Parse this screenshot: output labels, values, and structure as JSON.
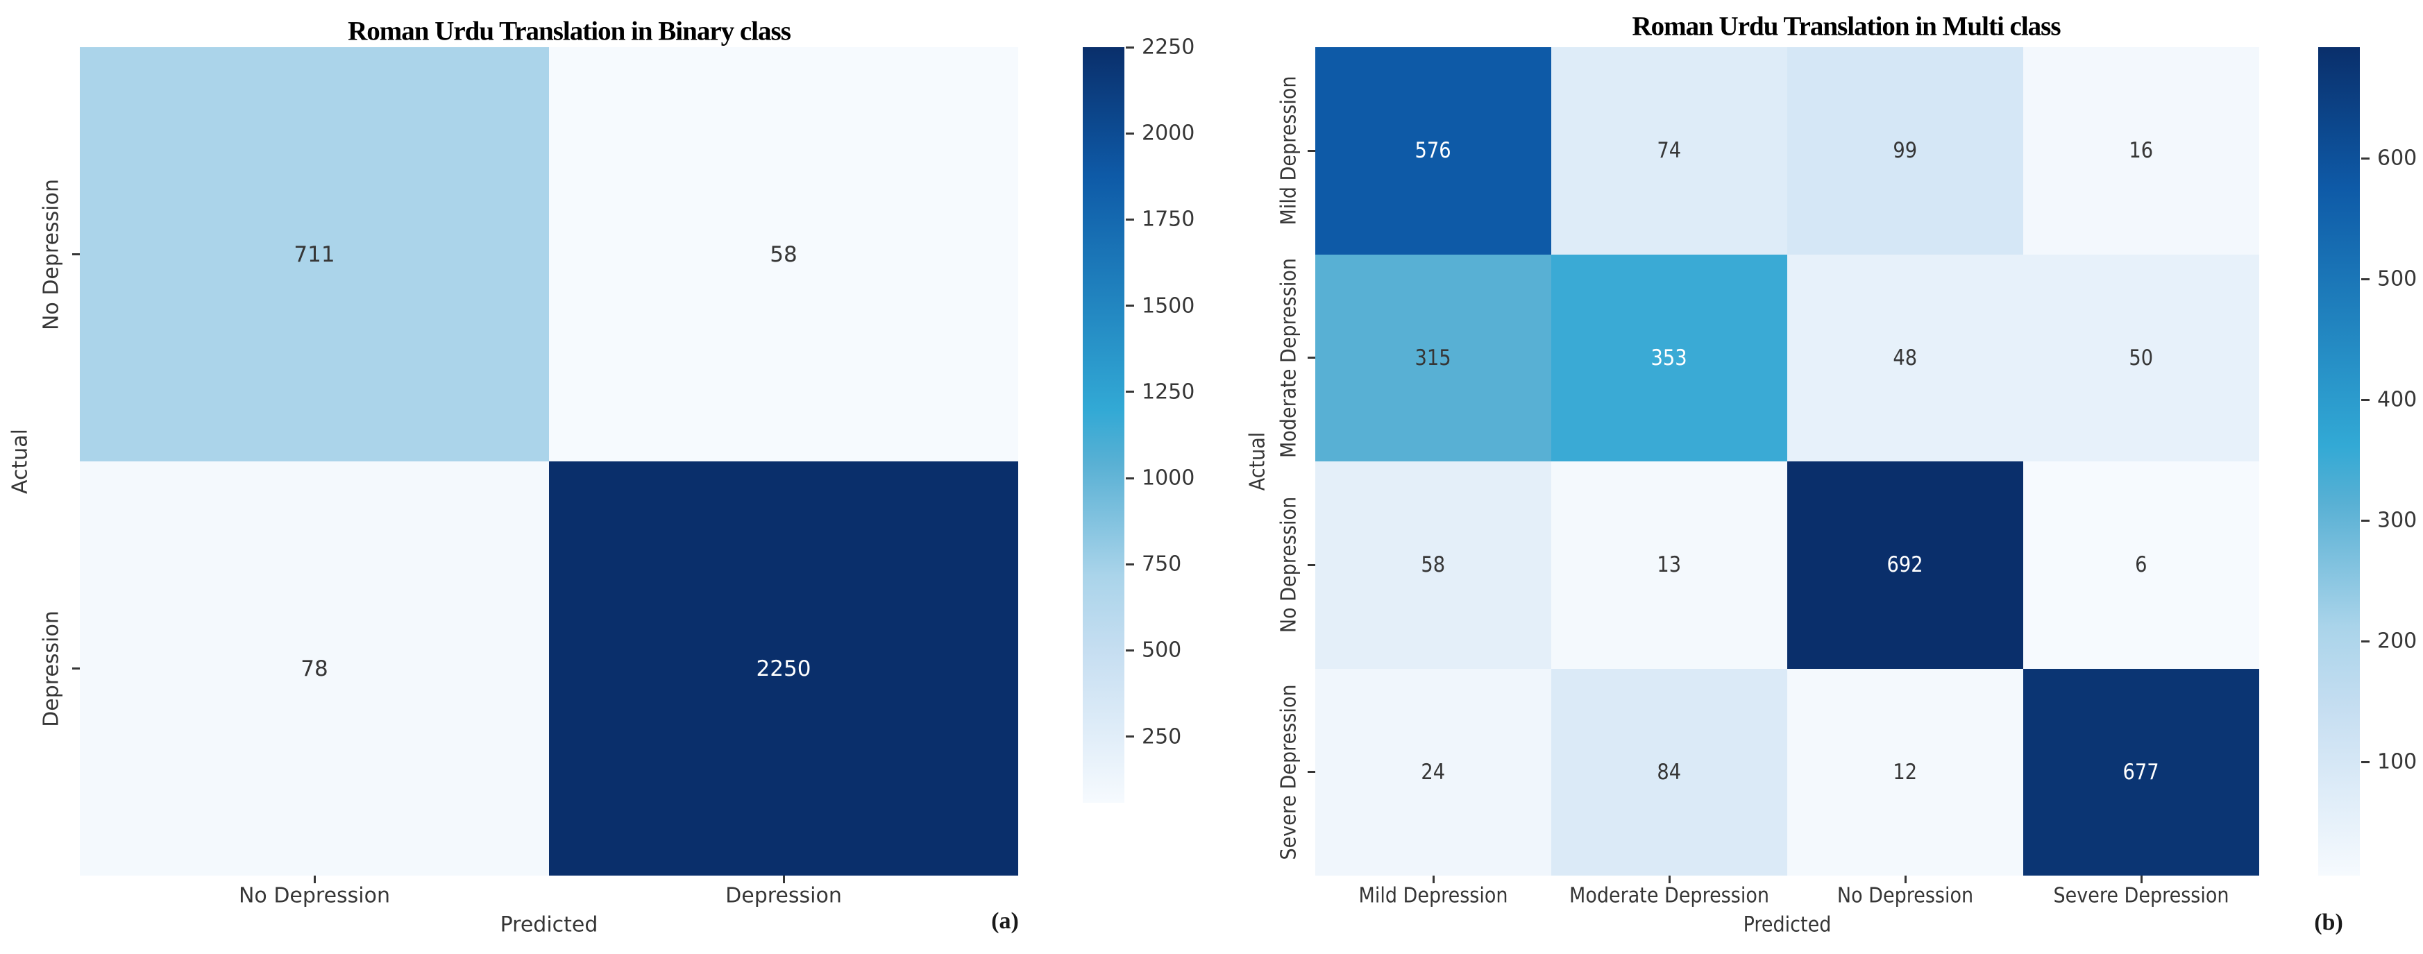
{
  "figure": {
    "background": "#ffffff"
  },
  "colors": {
    "axis_text": "#363636",
    "title_text": "#000000",
    "value_text_dark": "#363636",
    "value_text_light": "#ffffff",
    "colormap_low": "#f6fafe",
    "colormap_high": "#0a2f6b",
    "colormap_stops": [
      [
        0.0,
        "#f6fafe"
      ],
      [
        0.1,
        "#deecf8"
      ],
      [
        0.2,
        "#c6def1"
      ],
      [
        0.3,
        "#aad4ea"
      ],
      [
        0.45,
        "#58b0d4"
      ],
      [
        0.52,
        "#32a9d5"
      ],
      [
        0.83,
        "#0e5aa7"
      ],
      [
        1.0,
        "#0a2f6b"
      ]
    ]
  },
  "chart_data": [
    {
      "type": "heatmap",
      "title": "Roman Urdu Translation in Binary class",
      "panel_label": "(a)",
      "xlabel": "Predicted",
      "ylabel": "Actual",
      "x_categories": [
        "No Depression",
        "Depression"
      ],
      "y_categories": [
        "No Depression",
        "Depression"
      ],
      "values": [
        [
          711,
          58
        ],
        [
          78,
          2250
        ]
      ],
      "vmin": 58,
      "vmax": 2250,
      "colorbar_ticks": [
        2250,
        2000,
        1750,
        1500,
        1250,
        1000,
        750,
        500,
        250
      ],
      "legend_position": "right-colorbar",
      "grid": false
    },
    {
      "type": "heatmap",
      "title": "Roman Urdu Translation in Multi class",
      "panel_label": "(b)",
      "xlabel": "Predicted",
      "ylabel": "Actual",
      "x_categories": [
        "Mild Depression",
        "Moderate Depression",
        "No Depression",
        "Severe Depression"
      ],
      "y_categories": [
        "Mild Depression",
        "Moderate Depression",
        "No Depression",
        "Severe Depression"
      ],
      "values": [
        [
          576,
          74,
          99,
          16
        ],
        [
          315,
          353,
          48,
          50
        ],
        [
          58,
          13,
          692,
          6
        ],
        [
          24,
          84,
          12,
          677
        ]
      ],
      "vmin": 6,
      "vmax": 692,
      "colorbar_ticks": [
        600,
        500,
        400,
        300,
        200,
        100
      ],
      "legend_position": "right-colorbar",
      "grid": false
    }
  ]
}
